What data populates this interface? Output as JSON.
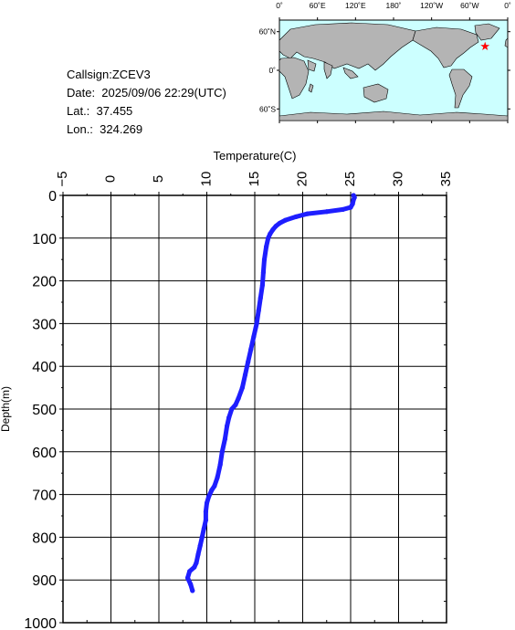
{
  "info": {
    "callsign": "Callsign:ZCEV3",
    "date": "Date:  2025/09/06 22:29(UTC)",
    "lat": "Lat.:  37.455",
    "lon": "Lon.:  324.269"
  },
  "map": {
    "lon_labels": [
      "0˚",
      "60˚E",
      "120˚E",
      "180˚",
      "120˚W",
      "60˚W",
      "0˚"
    ],
    "lat_labels": [
      "60˚N",
      "0˚",
      "60˚S"
    ],
    "marker": {
      "lat": 37.455,
      "lon": 324.269,
      "color": "#ff0000"
    },
    "ocean_color": "#ccffff",
    "land_color": "#b4b4b4"
  },
  "chart_data": {
    "type": "line",
    "xlabel": "Temperature(C)",
    "ylabel": "Depth(m)",
    "xlim": [
      -5,
      35
    ],
    "ylim": [
      1000,
      0
    ],
    "x_ticks": [
      -5,
      0,
      5,
      10,
      15,
      20,
      25,
      30,
      35
    ],
    "y_ticks": [
      0,
      100,
      200,
      300,
      400,
      500,
      600,
      700,
      800,
      900,
      1000
    ],
    "grid": true,
    "series": [
      {
        "color": "#1e1eff",
        "points": [
          [
            25.3,
            0
          ],
          [
            25.4,
            5
          ],
          [
            25.3,
            10
          ],
          [
            25.2,
            20
          ],
          [
            25.0,
            28
          ],
          [
            24.2,
            33
          ],
          [
            22.5,
            38
          ],
          [
            20.5,
            43
          ],
          [
            19.3,
            50
          ],
          [
            18.2,
            58
          ],
          [
            17.6,
            65
          ],
          [
            17.2,
            72
          ],
          [
            16.9,
            80
          ],
          [
            16.6,
            90
          ],
          [
            16.4,
            100
          ],
          [
            16.2,
            120
          ],
          [
            16.0,
            150
          ],
          [
            15.9,
            180
          ],
          [
            15.8,
            210
          ],
          [
            15.6,
            240
          ],
          [
            15.4,
            270
          ],
          [
            15.2,
            300
          ],
          [
            14.9,
            330
          ],
          [
            14.6,
            360
          ],
          [
            14.3,
            390
          ],
          [
            14.0,
            420
          ],
          [
            13.7,
            450
          ],
          [
            13.3,
            475
          ],
          [
            13.0,
            490
          ],
          [
            12.6,
            500
          ],
          [
            12.3,
            520
          ],
          [
            12.1,
            540
          ],
          [
            11.9,
            570
          ],
          [
            11.6,
            600
          ],
          [
            11.4,
            630
          ],
          [
            11.1,
            660
          ],
          [
            10.8,
            680
          ],
          [
            10.5,
            690
          ],
          [
            10.2,
            705
          ],
          [
            10.0,
            720
          ],
          [
            9.9,
            740
          ],
          [
            9.9,
            760
          ],
          [
            9.7,
            780
          ],
          [
            9.5,
            800
          ],
          [
            9.3,
            820
          ],
          [
            9.1,
            840
          ],
          [
            8.9,
            860
          ],
          [
            8.7,
            870
          ],
          [
            8.2,
            880
          ],
          [
            8.0,
            895
          ],
          [
            8.3,
            910
          ],
          [
            8.5,
            925
          ]
        ]
      }
    ]
  }
}
